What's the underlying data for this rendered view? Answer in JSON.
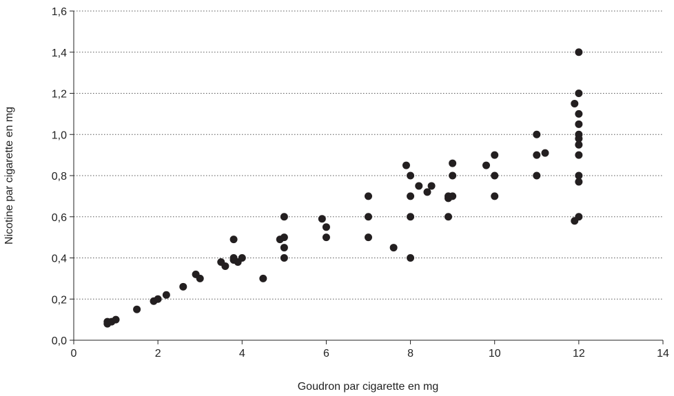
{
  "chart_data": {
    "type": "scatter",
    "title": "",
    "xlabel": "Goudron par cigarette en mg",
    "ylabel": "Nicotine par cigarette en mg",
    "xlim": [
      0,
      14
    ],
    "ylim": [
      0,
      1.6
    ],
    "x_ticks": [
      0,
      2,
      4,
      6,
      8,
      10,
      12,
      14
    ],
    "x_tick_labels": [
      "0",
      "2",
      "4",
      "6",
      "8",
      "10",
      "12",
      "14"
    ],
    "y_ticks": [
      0,
      0.2,
      0.4,
      0.6,
      0.8,
      1.0,
      1.2,
      1.4,
      1.6
    ],
    "y_tick_labels": [
      "0,0",
      "0,2",
      "0,4",
      "0,6",
      "0,8",
      "1,0",
      "1,2",
      "1,4",
      "1,6"
    ],
    "grid": "horizontal dotted",
    "legend": "none",
    "point_color": "#231f20",
    "series": [
      {
        "points": [
          [
            0.8,
            0.08
          ],
          [
            0.8,
            0.09
          ],
          [
            0.9,
            0.09
          ],
          [
            1.0,
            0.1
          ],
          [
            1.5,
            0.15
          ],
          [
            1.9,
            0.19
          ],
          [
            2.0,
            0.2
          ],
          [
            2.2,
            0.22
          ],
          [
            2.6,
            0.26
          ],
          [
            2.9,
            0.32
          ],
          [
            3.0,
            0.3
          ],
          [
            3.5,
            0.38
          ],
          [
            3.6,
            0.36
          ],
          [
            3.8,
            0.49
          ],
          [
            3.8,
            0.4
          ],
          [
            3.8,
            0.39
          ],
          [
            3.9,
            0.38
          ],
          [
            4.0,
            0.4
          ],
          [
            4.5,
            0.3
          ],
          [
            4.9,
            0.49
          ],
          [
            5.0,
            0.6
          ],
          [
            5.0,
            0.5
          ],
          [
            5.0,
            0.45
          ],
          [
            5.0,
            0.4
          ],
          [
            5.9,
            0.59
          ],
          [
            6.0,
            0.55
          ],
          [
            6.0,
            0.5
          ],
          [
            7.0,
            0.7
          ],
          [
            7.0,
            0.6
          ],
          [
            7.0,
            0.5
          ],
          [
            7.6,
            0.45
          ],
          [
            7.9,
            0.85
          ],
          [
            8.0,
            0.8
          ],
          [
            8.0,
            0.7
          ],
          [
            8.0,
            0.6
          ],
          [
            8.0,
            0.4
          ],
          [
            8.2,
            0.75
          ],
          [
            8.4,
            0.72
          ],
          [
            8.5,
            0.75
          ],
          [
            8.9,
            0.7
          ],
          [
            8.9,
            0.69
          ],
          [
            8.9,
            0.6
          ],
          [
            9.0,
            0.86
          ],
          [
            9.0,
            0.8
          ],
          [
            9.0,
            0.7
          ],
          [
            9.8,
            0.85
          ],
          [
            10.0,
            0.9
          ],
          [
            10.0,
            0.8
          ],
          [
            10.0,
            0.7
          ],
          [
            11.0,
            1.0
          ],
          [
            11.0,
            0.9
          ],
          [
            11.0,
            0.8
          ],
          [
            11.2,
            0.91
          ],
          [
            11.9,
            1.15
          ],
          [
            11.9,
            0.58
          ],
          [
            12.0,
            1.4
          ],
          [
            12.0,
            1.2
          ],
          [
            12.0,
            1.1
          ],
          [
            12.0,
            1.05
          ],
          [
            12.0,
            1.0
          ],
          [
            12.0,
            0.98
          ],
          [
            12.0,
            0.95
          ],
          [
            12.0,
            0.9
          ],
          [
            12.0,
            0.8
          ],
          [
            12.0,
            0.77
          ],
          [
            12.0,
            0.6
          ]
        ]
      }
    ]
  }
}
